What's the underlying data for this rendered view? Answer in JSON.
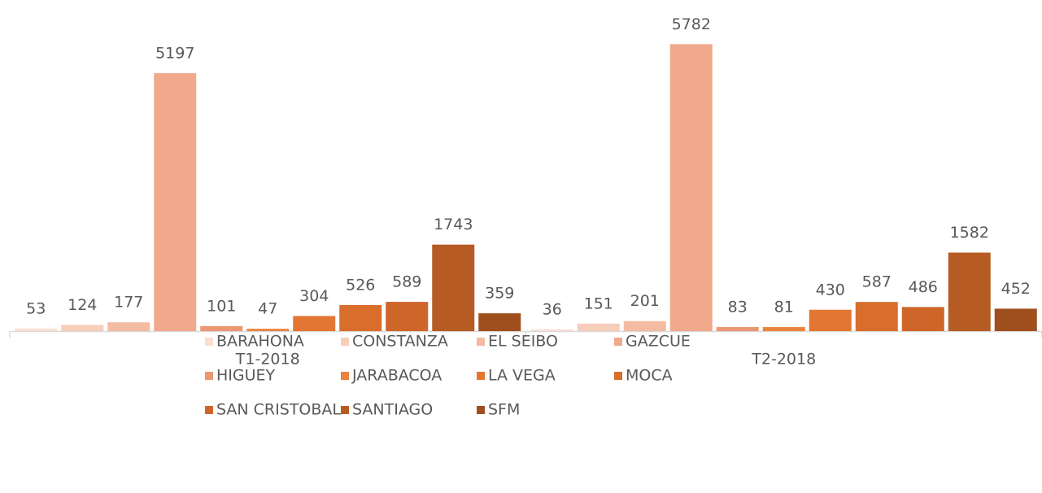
{
  "chart_data": {
    "type": "bar",
    "categories": [
      "T1-2018",
      "T2-2018"
    ],
    "series": [
      {
        "name": "BARAHONA",
        "color": "#fadfd3",
        "values": [
          53,
          36
        ]
      },
      {
        "name": "CONSTANZA",
        "color": "#f7cdbb",
        "values": [
          124,
          151
        ]
      },
      {
        "name": "EL SEIBO",
        "color": "#f4bba3",
        "values": [
          177,
          201
        ]
      },
      {
        "name": "GAZCUE",
        "color": "#f0a98b",
        "values": [
          5197,
          5782
        ]
      },
      {
        "name": "HIGUEY",
        "color": "#ec9771",
        "values": [
          101,
          83
        ]
      },
      {
        "name": "JARABACOA",
        "color": "#e8843f",
        "values": [
          47,
          81
        ]
      },
      {
        "name": "LA VEGA",
        "color": "#e27632",
        "values": [
          304,
          430
        ]
      },
      {
        "name": "MOCA",
        "color": "#d96d2c",
        "values": [
          526,
          587
        ]
      },
      {
        "name": "SAN CRISTOBAL",
        "color": "#cf6629",
        "values": [
          589,
          486
        ]
      },
      {
        "name": "SANTIAGO",
        "color": "#b65b24",
        "values": [
          1743,
          1582
        ]
      },
      {
        "name": "SFM",
        "color": "#9f4f1e",
        "values": [
          359,
          452
        ]
      }
    ],
    "ylim": [
      0,
      6000
    ]
  }
}
